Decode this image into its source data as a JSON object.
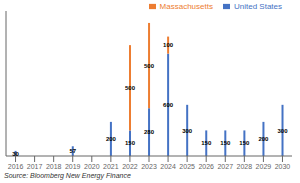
{
  "chart_data": {
    "type": "bar",
    "stacked": true,
    "categories": [
      "2016",
      "2017",
      "2018",
      "2019",
      "2020",
      "2021",
      "2022",
      "2023",
      "2024",
      "2025",
      "2026",
      "2027",
      "2028",
      "2029",
      "2030"
    ],
    "series": [
      {
        "name": "United States",
        "color": "#4472c4",
        "values": [
          30,
          0,
          0,
          57,
          0,
          200,
          150,
          280,
          600,
          300,
          150,
          150,
          150,
          200,
          300
        ]
      },
      {
        "name": "Massachusetts",
        "color": "#ed7d31",
        "values": [
          0,
          0,
          0,
          0,
          0,
          0,
          500,
          500,
          100,
          0,
          0,
          0,
          0,
          0,
          0
        ]
      }
    ],
    "ylim": [
      0,
      850
    ],
    "yticks": [],
    "grid": false,
    "legend": "upper right",
    "data_labels": true,
    "tick_labels": "x",
    "annotations": [
      "Source: Bloomberg New Energy Finance"
    ]
  }
}
